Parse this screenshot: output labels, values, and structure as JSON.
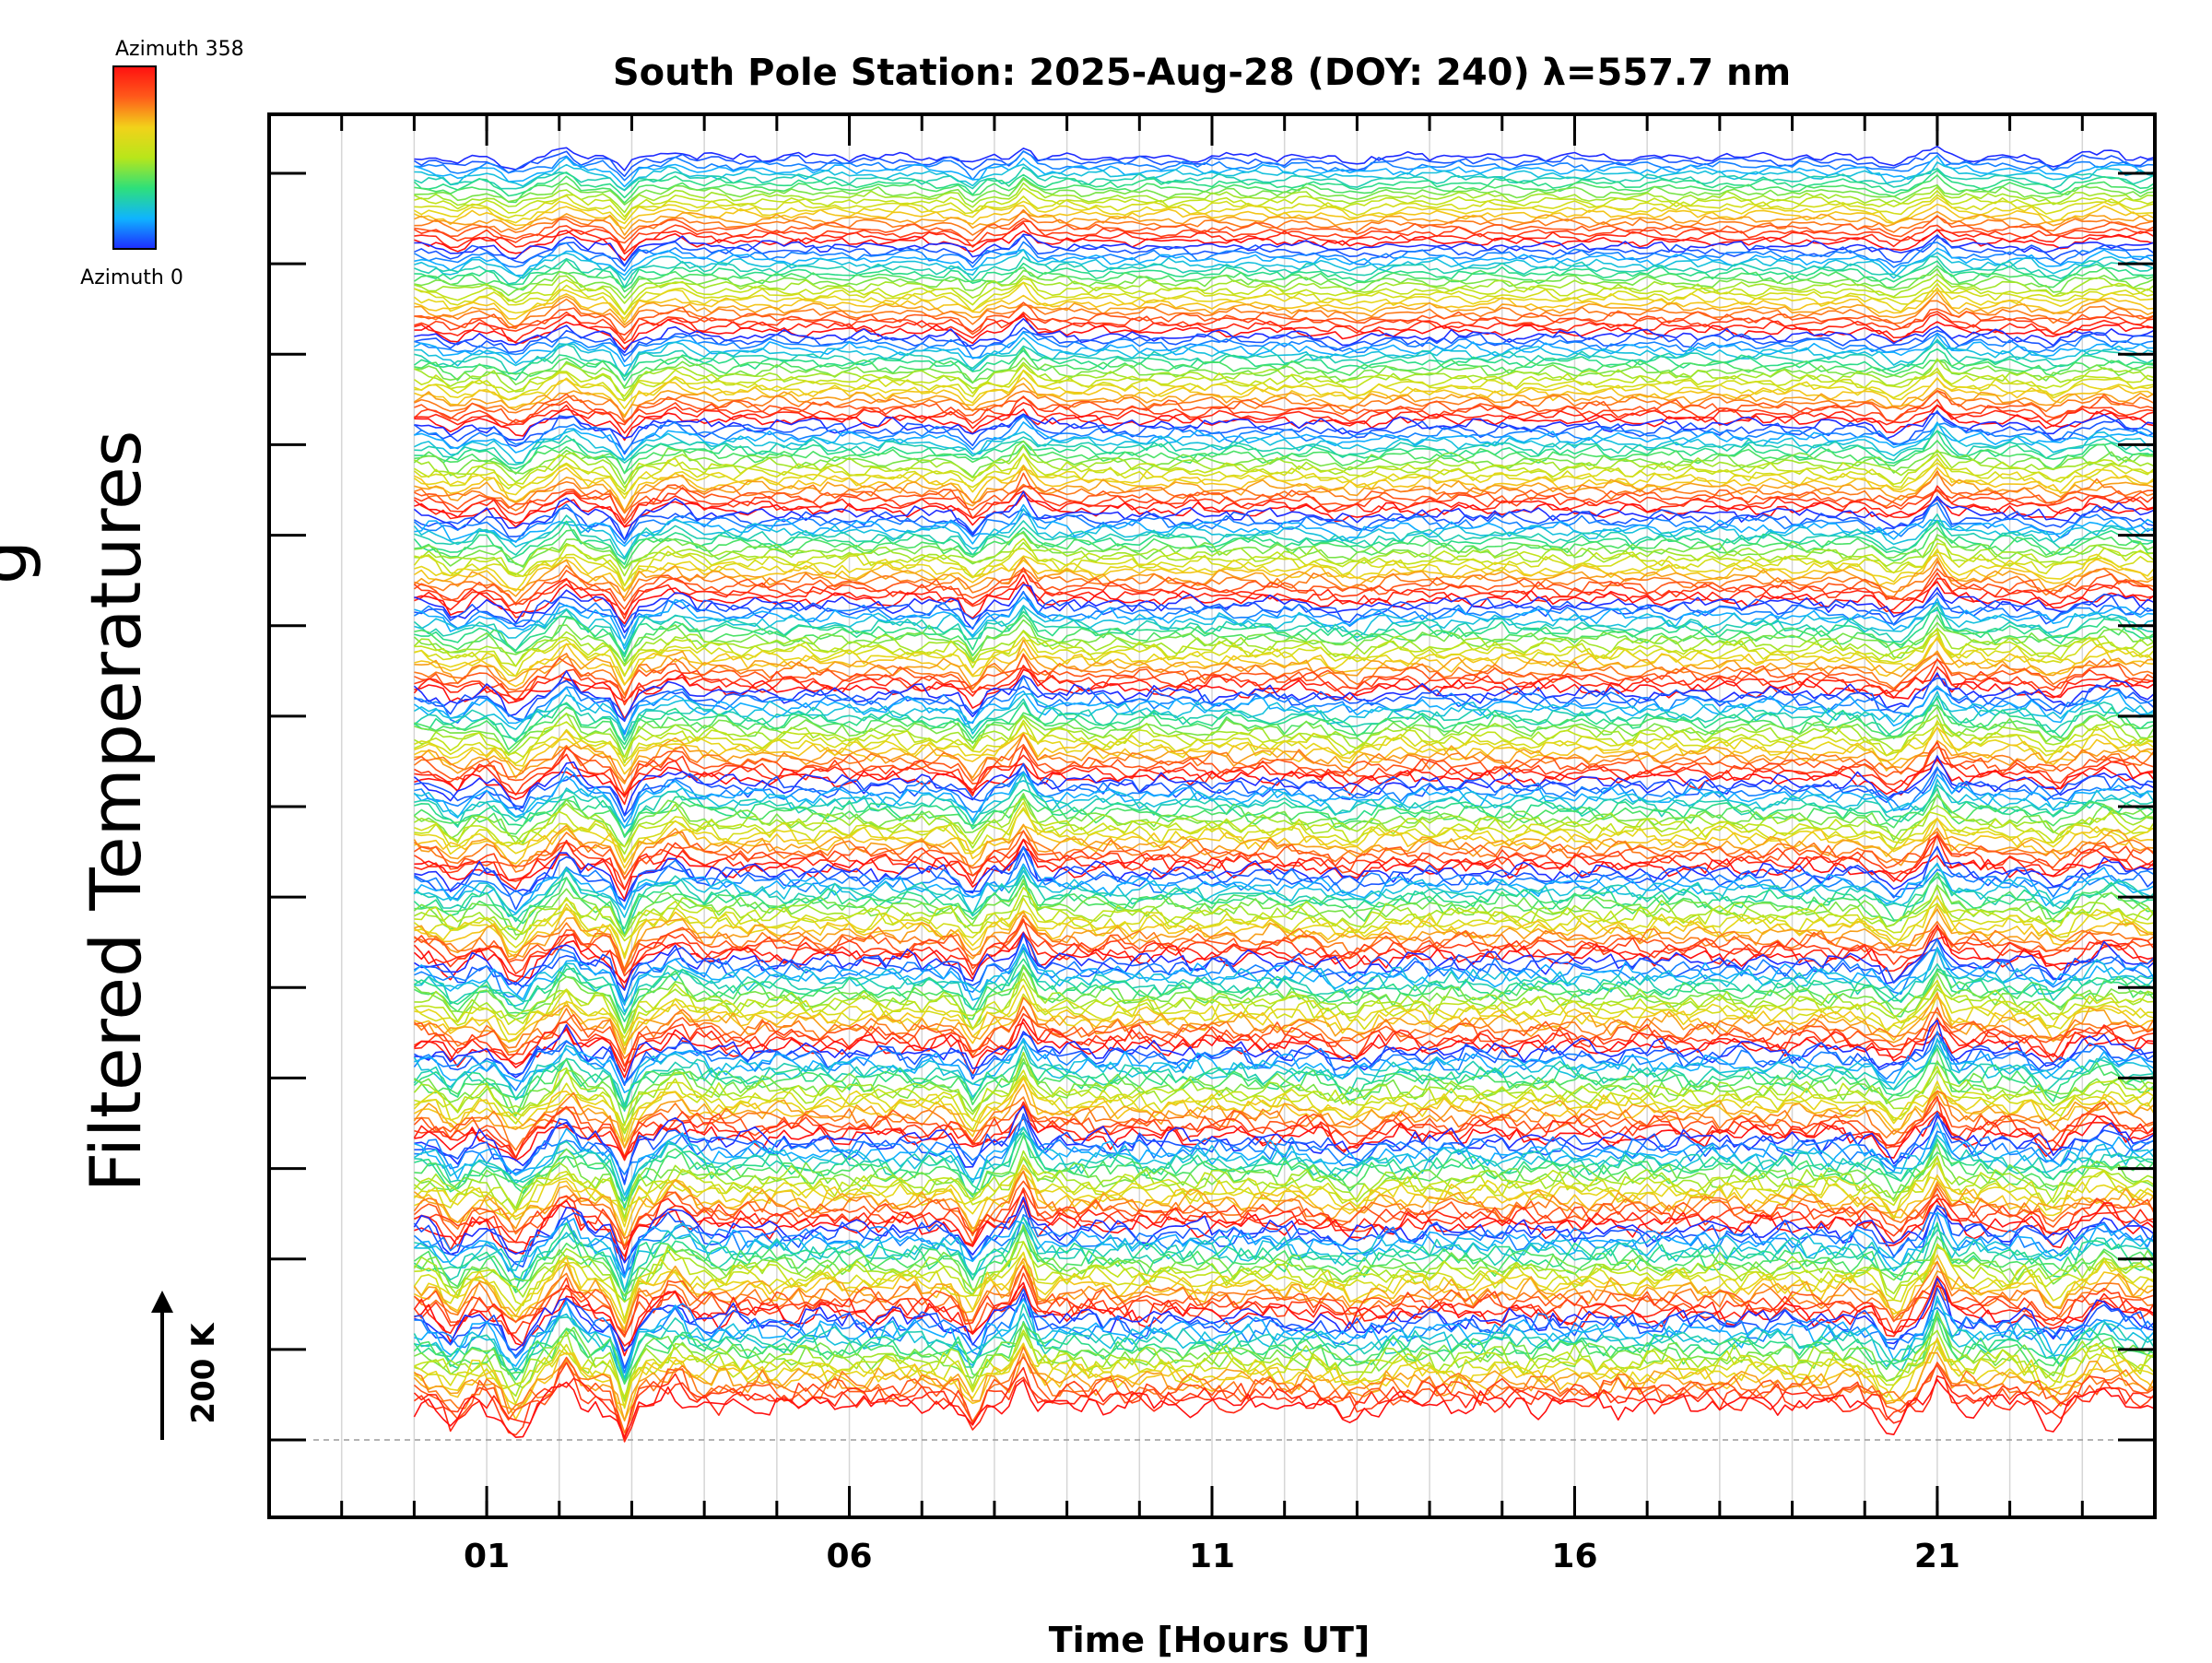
{
  "colorbar": {
    "top_label": "Azimuth 358",
    "bottom_label": "Azimuth 0",
    "stops": [
      "#1e2bff",
      "#0fb4ff",
      "#2ee07a",
      "#b8e61a",
      "#f2d21a",
      "#ff5a1a",
      "#ff1010"
    ]
  },
  "ylabel_line1": "g",
  "scale_label": "200 K",
  "chart_data": {
    "type": "line",
    "title": "South Pole Station: 2025-Aug-28 (DOY: 240) λ=557.7 nm",
    "xlabel": "Time [Hours UT]",
    "ylabel": "Filtered Temperatures",
    "xlim": [
      -2,
      24
    ],
    "x_tick_labels": [
      {
        "value": 1,
        "label": "01"
      },
      {
        "value": 6,
        "label": "06"
      },
      {
        "value": 11,
        "label": "11"
      },
      {
        "value": 16,
        "label": "16"
      },
      {
        "value": 21,
        "label": "21"
      }
    ],
    "minor_ticks_every": 1,
    "data_start_hour": 0,
    "data_end_hour": 24,
    "groups": 14,
    "traces_per_group": 20,
    "azimuth_range": [
      0,
      358
    ],
    "scale_bar_K": 200,
    "grid": true
  }
}
